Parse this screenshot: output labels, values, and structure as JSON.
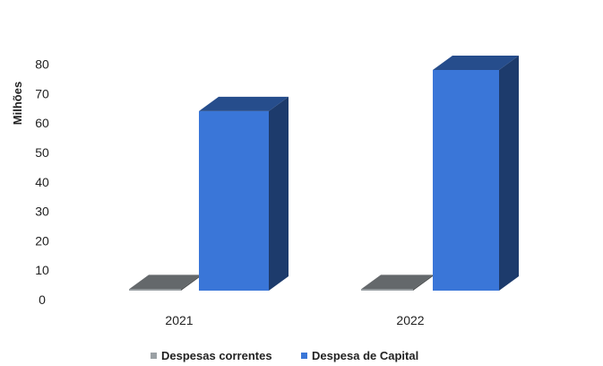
{
  "chart_data": {
    "type": "bar",
    "title": "",
    "xlabel": "",
    "ylabel": "Milhões",
    "categories": [
      "2021",
      "2022"
    ],
    "series": [
      {
        "name": "Despesas correntes",
        "values": [
          0.5,
          0.5
        ],
        "color": "#9aa0a4"
      },
      {
        "name": "Despesa de Capital",
        "values": [
          61,
          75
        ],
        "color": "#3a76d8"
      }
    ],
    "ylim": [
      0,
      80
    ],
    "yticks": [
      "0",
      "10",
      "20",
      "30",
      "40",
      "50",
      "60",
      "70",
      "80"
    ],
    "legend_position": "bottom",
    "grid": false,
    "style": "3d"
  }
}
